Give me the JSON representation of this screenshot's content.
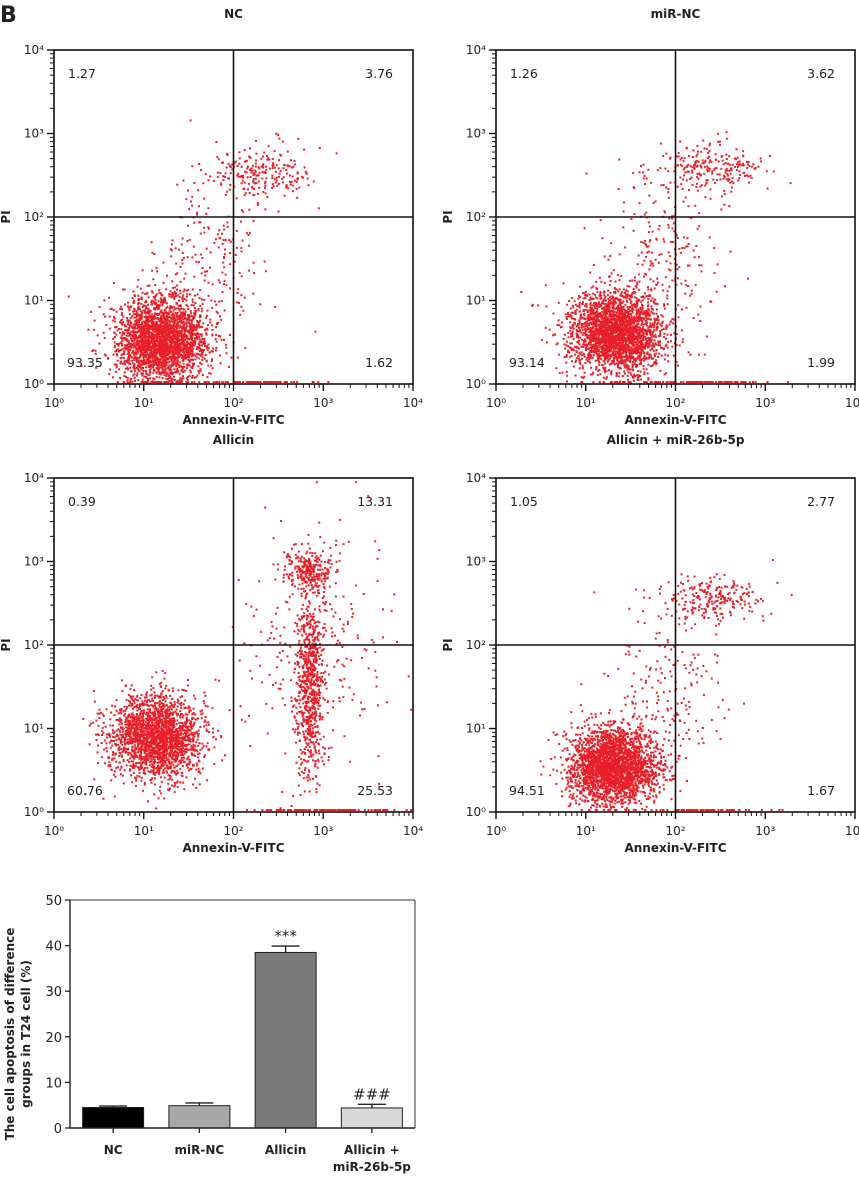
{
  "figure_label": "B",
  "chart_data": [
    {
      "type": "scatter",
      "title": "NC",
      "xlabel": "Annexin-V-FITC",
      "ylabel": "PI",
      "x_scale": "log",
      "y_scale": "log",
      "xlim": [
        1,
        10000
      ],
      "ylim": [
        1,
        10000
      ],
      "x_ticks": [
        "10⁰",
        "10¹",
        "10²",
        "10³",
        "10⁴"
      ],
      "y_ticks": [
        "10⁰",
        "10¹",
        "10²",
        "10³",
        "10⁴"
      ],
      "gate": {
        "x": 100,
        "y": 100
      },
      "quadrants": {
        "upper_left": "1.27",
        "upper_right": "3.76",
        "lower_left": "93.35",
        "lower_right": "1.62"
      },
      "point_color": "#e8202a",
      "populations": [
        {
          "center": [
            16,
            3.5
          ],
          "spread_log10": [
            0.25,
            0.25
          ],
          "count": 2600
        },
        {
          "center": [
            200,
            350
          ],
          "spread_log10": [
            0.3,
            0.15
          ],
          "count": 230
        },
        {
          "center": [
            60,
            30
          ],
          "spread_log10": [
            0.35,
            0.5
          ],
          "count": 180
        },
        {
          "center": [
            150,
            1
          ],
          "spread_log10": [
            0.35,
            0
          ],
          "count": 80
        }
      ]
    },
    {
      "type": "scatter",
      "title": "miR-NC",
      "xlabel": "Annexin-V-FITC",
      "ylabel": "PI",
      "x_scale": "log",
      "y_scale": "log",
      "xlim": [
        1,
        10000
      ],
      "ylim": [
        1,
        10000
      ],
      "x_ticks": [
        "10⁰",
        "10¹",
        "10²",
        "10³",
        "10⁴"
      ],
      "y_ticks": [
        "10⁰",
        "10¹",
        "10²",
        "10³",
        "10⁴"
      ],
      "gate": {
        "x": 100,
        "y": 100
      },
      "quadrants": {
        "upper_left": "1.26",
        "upper_right": "3.62",
        "lower_left": "93.14",
        "lower_right": "1.99"
      },
      "point_color": "#e8202a",
      "populations": [
        {
          "center": [
            22,
            4
          ],
          "spread_log10": [
            0.25,
            0.25
          ],
          "count": 2600
        },
        {
          "center": [
            250,
            380
          ],
          "spread_log10": [
            0.3,
            0.15
          ],
          "count": 240
        },
        {
          "center": [
            70,
            35
          ],
          "spread_log10": [
            0.3,
            0.5
          ],
          "count": 220
        },
        {
          "center": [
            200,
            1
          ],
          "spread_log10": [
            0.35,
            0
          ],
          "count": 80
        }
      ]
    },
    {
      "type": "scatter",
      "title": "Allicin",
      "xlabel": "Annexin-V-FITC",
      "ylabel": "PI",
      "x_scale": "log",
      "y_scale": "log",
      "xlim": [
        1,
        10000
      ],
      "ylim": [
        1,
        10000
      ],
      "x_ticks": [
        "10⁰",
        "10¹",
        "10²",
        "10³",
        "10⁴"
      ],
      "y_ticks": [
        "10⁰",
        "10¹",
        "10²",
        "10³",
        "10⁴"
      ],
      "gate": {
        "x": 100,
        "y": 100
      },
      "quadrants": {
        "upper_left": "0.39",
        "upper_right": "13.31",
        "lower_left": "60.76",
        "lower_right": "25.53"
      },
      "point_color": "#e8202a",
      "populations": [
        {
          "center": [
            14,
            8
          ],
          "spread_log10": [
            0.25,
            0.25
          ],
          "count": 2100
        },
        {
          "center": [
            700,
            30
          ],
          "spread_log10": [
            0.08,
            0.55
          ],
          "count": 700
        },
        {
          "center": [
            700,
            800
          ],
          "spread_log10": [
            0.12,
            0.12
          ],
          "count": 260
        },
        {
          "center": [
            800,
            100
          ],
          "spread_log10": [
            0.45,
            0.8
          ],
          "count": 260
        },
        {
          "center": [
            1000,
            1
          ],
          "spread_log10": [
            0.4,
            0
          ],
          "count": 120
        }
      ]
    },
    {
      "type": "scatter",
      "title": "Allicin + miR-26b-5p",
      "xlabel": "Annexin-V-FITC",
      "ylabel": "PI",
      "x_scale": "log",
      "y_scale": "log",
      "xlim": [
        1,
        10000
      ],
      "ylim": [
        1,
        10000
      ],
      "x_ticks": [
        "10⁰",
        "10¹",
        "10²",
        "10³",
        "10⁴"
      ],
      "y_ticks": [
        "10⁰",
        "10¹",
        "10²",
        "10³",
        "10⁴"
      ],
      "gate": {
        "x": 100,
        "y": 100
      },
      "quadrants": {
        "upper_left": "1.05",
        "upper_right": "2.77",
        "lower_left": "94.51",
        "lower_right": "1.67"
      },
      "point_color": "#e8202a",
      "populations": [
        {
          "center": [
            20,
            3.5
          ],
          "spread_log10": [
            0.25,
            0.22
          ],
          "count": 2600
        },
        {
          "center": [
            250,
            350
          ],
          "spread_log10": [
            0.3,
            0.13
          ],
          "count": 230
        },
        {
          "center": [
            80,
            30
          ],
          "spread_log10": [
            0.3,
            0.5
          ],
          "count": 180
        },
        {
          "center": [
            200,
            1
          ],
          "spread_log10": [
            0.35,
            0
          ],
          "count": 70
        }
      ]
    },
    {
      "type": "bar",
      "categories": [
        "NC",
        "miR-NC",
        "Allicin",
        "Allicin + miR-26b-5p"
      ],
      "category_lines": [
        [
          "NC"
        ],
        [
          "miR-NC"
        ],
        [
          "Allicin"
        ],
        [
          "Allicin +",
          "miR-26b-5p"
        ]
      ],
      "values": [
        4.5,
        4.9,
        38.5,
        4.4
      ],
      "errors": [
        0.3,
        0.6,
        1.4,
        0.8
      ],
      "annotations": [
        "",
        "",
        "***",
        "###"
      ],
      "colors": [
        "#000000",
        "#a8a8a8",
        "#7a7a7a",
        "#d8d8d8"
      ],
      "ylabel_lines": [
        "The cell apoptosis of difference",
        "groups in T24 cell (%)"
      ],
      "ylim": [
        0,
        50
      ],
      "y_ticks": [
        "0",
        "10",
        "20",
        "30",
        "40",
        "50"
      ],
      "xlabel": ""
    }
  ]
}
